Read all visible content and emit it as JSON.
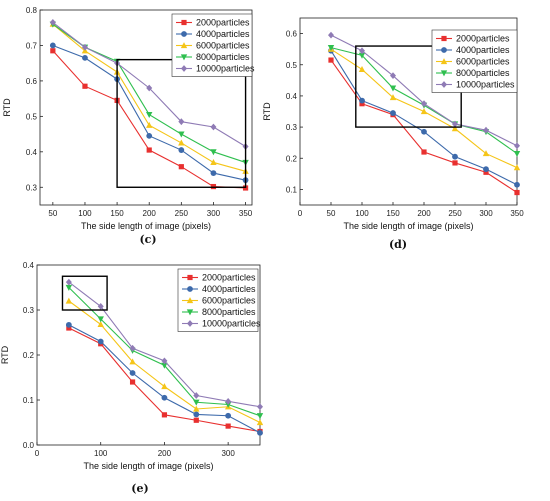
{
  "chart_data": [
    {
      "type": "line",
      "panel_label": "(c)",
      "xlabel": "The side length of image (pixels)",
      "ylabel": "RTD",
      "x": [
        50,
        100,
        150,
        200,
        250,
        300,
        350
      ],
      "xlim": [
        30,
        360
      ],
      "ylim": [
        0.25,
        0.8
      ],
      "xticks": [
        50,
        100,
        150,
        200,
        250,
        300,
        350
      ],
      "yticks": [
        0.3,
        0.4,
        0.5,
        0.6,
        0.7,
        0.8
      ],
      "ytick_labels": [
        "0.3",
        "0.4",
        "0.5",
        "0.6",
        "0.7",
        "0.8"
      ],
      "legend": "top-right",
      "zoom_box": {
        "x": [
          150,
          350
        ],
        "y": [
          0.3,
          0.66
        ]
      },
      "series": [
        {
          "name": "2000particles",
          "color": "#e8302f",
          "marker": "square",
          "values": [
            0.685,
            0.585,
            0.545,
            0.405,
            0.358,
            0.302,
            0.298
          ]
        },
        {
          "name": "4000particles",
          "color": "#3d6aab",
          "marker": "circle",
          "values": [
            0.7,
            0.665,
            0.605,
            0.445,
            0.405,
            0.34,
            0.32
          ]
        },
        {
          "name": "6000particles",
          "color": "#f5c518",
          "marker": "triangle-up",
          "values": [
            0.76,
            0.685,
            0.625,
            0.475,
            0.425,
            0.37,
            0.345
          ]
        },
        {
          "name": "8000particles",
          "color": "#2fbf4f",
          "marker": "triangle-down",
          "values": [
            0.76,
            0.695,
            0.655,
            0.505,
            0.45,
            0.4,
            0.37
          ]
        },
        {
          "name": "10000particles",
          "color": "#8f7bb5",
          "marker": "diamond",
          "values": [
            0.765,
            0.695,
            0.65,
            0.58,
            0.485,
            0.47,
            0.415
          ]
        }
      ]
    },
    {
      "type": "line",
      "panel_label": "(d)",
      "xlabel": "The side length of image (pixels)",
      "ylabel": "RTD",
      "x": [
        50,
        100,
        150,
        200,
        250,
        300,
        350
      ],
      "xlim": [
        0,
        350
      ],
      "ylim": [
        0.05,
        0.65
      ],
      "xticks": [
        0,
        50,
        100,
        150,
        200,
        250,
        300,
        350
      ],
      "yticks": [
        0.1,
        0.2,
        0.3,
        0.4,
        0.5,
        0.6
      ],
      "ytick_labels": [
        "0.1",
        "0.2",
        "0.3",
        "0.4",
        "0.5",
        "0.6"
      ],
      "legend": "top-right",
      "zoom_box": {
        "x": [
          90,
          260
        ],
        "y": [
          0.3,
          0.56
        ]
      },
      "series": [
        {
          "name": "2000particles",
          "color": "#e8302f",
          "marker": "square",
          "values": [
            0.515,
            0.375,
            0.34,
            0.22,
            0.185,
            0.155,
            0.09
          ]
        },
        {
          "name": "4000particles",
          "color": "#3d6aab",
          "marker": "circle",
          "values": [
            0.545,
            0.385,
            0.345,
            0.285,
            0.205,
            0.165,
            0.115
          ]
        },
        {
          "name": "6000particles",
          "color": "#f5c518",
          "marker": "triangle-up",
          "values": [
            0.55,
            0.485,
            0.395,
            0.35,
            0.295,
            0.215,
            0.17
          ]
        },
        {
          "name": "8000particles",
          "color": "#2fbf4f",
          "marker": "triangle-down",
          "values": [
            0.555,
            0.53,
            0.425,
            0.37,
            0.31,
            0.285,
            0.215
          ]
        },
        {
          "name": "10000particles",
          "color": "#8f7bb5",
          "marker": "diamond",
          "values": [
            0.595,
            0.545,
            0.465,
            0.375,
            0.31,
            0.29,
            0.24
          ]
        }
      ]
    },
    {
      "type": "line",
      "panel_label": "(e)",
      "xlabel": "The side length of image (pixels)",
      "ylabel": "RTD",
      "x": [
        50,
        100,
        150,
        200,
        250,
        300,
        350
      ],
      "xlim": [
        0,
        350
      ],
      "ylim": [
        0,
        0.4
      ],
      "xticks": [
        0,
        100,
        200,
        300
      ],
      "yticks": [
        0.0,
        0.1,
        0.2,
        0.3,
        0.4
      ],
      "ytick_labels": [
        "0.0",
        "0.1",
        "0.2",
        "0.3",
        "0.4"
      ],
      "legend": "top-right",
      "zoom_box": {
        "x": [
          40,
          110
        ],
        "y": [
          0.3,
          0.375
        ]
      },
      "series": [
        {
          "name": "2000particles",
          "color": "#e8302f",
          "marker": "square",
          "values": [
            0.26,
            0.225,
            0.14,
            0.067,
            0.055,
            0.042,
            0.03
          ]
        },
        {
          "name": "4000particles",
          "color": "#3d6aab",
          "marker": "circle",
          "values": [
            0.267,
            0.23,
            0.16,
            0.105,
            0.068,
            0.065,
            0.027
          ]
        },
        {
          "name": "6000particles",
          "color": "#f5c518",
          "marker": "triangle-up",
          "values": [
            0.32,
            0.268,
            0.185,
            0.13,
            0.08,
            0.085,
            0.05
          ]
        },
        {
          "name": "8000particles",
          "color": "#2fbf4f",
          "marker": "triangle-down",
          "values": [
            0.35,
            0.28,
            0.21,
            0.177,
            0.095,
            0.09,
            0.065
          ]
        },
        {
          "name": "10000particles",
          "color": "#8f7bb5",
          "marker": "diamond",
          "values": [
            0.362,
            0.308,
            0.215,
            0.187,
            0.11,
            0.097,
            0.085
          ]
        }
      ]
    }
  ]
}
